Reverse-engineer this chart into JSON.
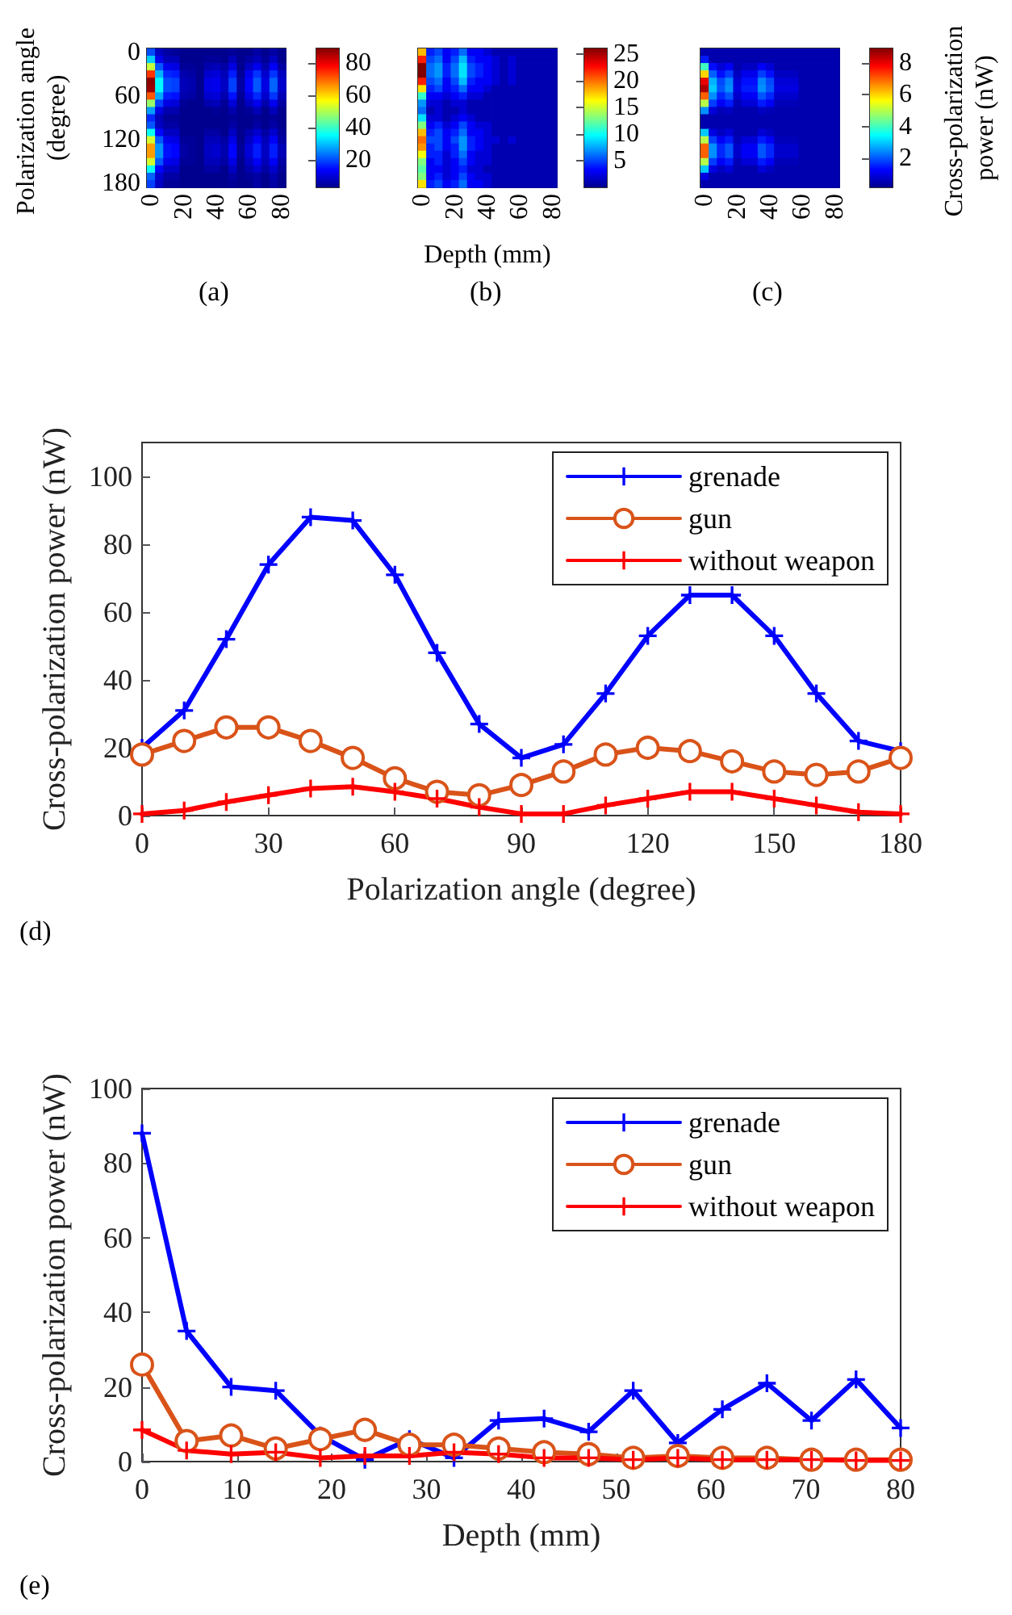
{
  "chart_data": [
    {
      "type": "heatmap",
      "ylabel": "Polarization angle (degree)",
      "annotations": [
        "(a)"
      ],
      "categories": [
        "0",
        null,
        null,
        null,
        "20",
        null,
        null,
        null,
        "40",
        null,
        null,
        null,
        "60",
        null,
        null,
        null,
        "80"
      ],
      "y_categories": [
        "0",
        null,
        null,
        null,
        null,
        null,
        "60",
        null,
        null,
        null,
        null,
        null,
        "120",
        null,
        null,
        null,
        null,
        null,
        "180"
      ],
      "clim": [
        3,
        89
      ],
      "cticks": [
        20,
        40,
        60,
        80
      ],
      "cells": [
        [
          20,
          8,
          5,
          4,
          3,
          3,
          3,
          3,
          3,
          3,
          4,
          3,
          3,
          5,
          3,
          5,
          3
        ],
        [
          31,
          12,
          7,
          7,
          3,
          3,
          3,
          4,
          4,
          3,
          7,
          3,
          5,
          7,
          4,
          8,
          3
        ],
        [
          52,
          21,
          12,
          11,
          4,
          4,
          3,
          6,
          7,
          5,
          11,
          3,
          8,
          12,
          6,
          13,
          5
        ],
        [
          74,
          29,
          17,
          16,
          6,
          5,
          3,
          9,
          10,
          7,
          16,
          4,
          12,
          18,
          9,
          18,
          8
        ],
        [
          88,
          35,
          20,
          19,
          7,
          6,
          3,
          11,
          12,
          8,
          19,
          5,
          14,
          21,
          11,
          22,
          9
        ],
        [
          87,
          35,
          20,
          19,
          7,
          6,
          3,
          11,
          12,
          8,
          19,
          5,
          14,
          21,
          11,
          22,
          9
        ],
        [
          71,
          28,
          16,
          15,
          6,
          5,
          3,
          9,
          10,
          6,
          15,
          4,
          11,
          17,
          9,
          18,
          7
        ],
        [
          48,
          19,
          11,
          10,
          4,
          3,
          3,
          6,
          7,
          4,
          10,
          3,
          8,
          12,
          6,
          12,
          5
        ],
        [
          27,
          11,
          6,
          6,
          3,
          3,
          3,
          3,
          4,
          3,
          6,
          3,
          4,
          7,
          3,
          7,
          3
        ],
        [
          17,
          7,
          4,
          4,
          3,
          3,
          3,
          3,
          3,
          3,
          4,
          3,
          3,
          4,
          3,
          4,
          3
        ],
        [
          21,
          8,
          5,
          5,
          3,
          3,
          3,
          3,
          3,
          3,
          5,
          3,
          3,
          5,
          3,
          5,
          3
        ],
        [
          36,
          14,
          8,
          8,
          3,
          3,
          3,
          5,
          5,
          3,
          8,
          3,
          6,
          9,
          5,
          9,
          4
        ],
        [
          53,
          21,
          12,
          11,
          4,
          4,
          3,
          7,
          7,
          5,
          11,
          3,
          8,
          13,
          7,
          13,
          5
        ],
        [
          65,
          26,
          15,
          14,
          5,
          4,
          3,
          8,
          9,
          6,
          14,
          4,
          10,
          16,
          8,
          16,
          7
        ],
        [
          65,
          26,
          15,
          14,
          5,
          4,
          3,
          8,
          9,
          6,
          14,
          4,
          10,
          16,
          8,
          16,
          7
        ],
        [
          53,
          21,
          12,
          11,
          4,
          4,
          3,
          7,
          7,
          5,
          11,
          3,
          8,
          13,
          7,
          13,
          5
        ],
        [
          36,
          14,
          8,
          8,
          3,
          3,
          3,
          5,
          5,
          3,
          8,
          3,
          6,
          9,
          5,
          9,
          4
        ],
        [
          22,
          9,
          5,
          5,
          3,
          3,
          3,
          3,
          3,
          3,
          5,
          3,
          4,
          5,
          3,
          6,
          3
        ],
        [
          19,
          8,
          4,
          4,
          3,
          3,
          3,
          3,
          3,
          3,
          4,
          3,
          3,
          5,
          3,
          5,
          3
        ]
      ]
    },
    {
      "type": "heatmap",
      "xlabel": "Depth (mm)",
      "annotations": [
        "(b)"
      ],
      "tick_labels": "x",
      "categories": [
        "0",
        null,
        null,
        null,
        "20",
        null,
        null,
        null,
        "40",
        null,
        null,
        null,
        "60",
        null,
        null,
        null,
        "80"
      ],
      "y_categories": [
        null,
        null,
        null,
        null,
        null,
        null,
        null,
        null,
        null,
        null,
        null,
        null,
        null,
        null,
        null,
        null,
        null,
        null,
        null
      ],
      "clim": [
        0,
        26
      ],
      "cticks": [
        5,
        10,
        15,
        20,
        25
      ],
      "cells": [
        [
          18,
          4,
          5,
          3,
          4,
          6,
          3,
          3,
          2,
          1,
          1,
          1,
          1,
          1,
          1,
          1,
          1
        ],
        [
          22,
          5,
          6,
          3,
          5,
          8,
          4,
          3,
          3,
          2,
          1,
          2,
          1,
          1,
          1,
          1,
          1
        ],
        [
          26,
          6,
          7,
          4,
          6,
          9,
          5,
          4,
          3,
          2,
          1,
          2,
          1,
          1,
          1,
          1,
          1
        ],
        [
          26,
          6,
          7,
          4,
          6,
          9,
          5,
          4,
          3,
          2,
          1,
          2,
          1,
          1,
          1,
          1,
          1
        ],
        [
          22,
          5,
          6,
          3,
          5,
          8,
          4,
          3,
          3,
          2,
          1,
          2,
          1,
          1,
          1,
          1,
          1
        ],
        [
          17,
          4,
          5,
          3,
          4,
          6,
          3,
          3,
          2,
          1,
          1,
          1,
          1,
          1,
          1,
          1,
          1
        ],
        [
          11,
          3,
          3,
          2,
          3,
          4,
          2,
          2,
          1,
          1,
          1,
          1,
          1,
          1,
          1,
          1,
          1
        ],
        [
          7,
          2,
          2,
          1,
          2,
          2,
          1,
          1,
          1,
          1,
          1,
          1,
          1,
          1,
          1,
          1,
          1
        ],
        [
          6,
          1,
          2,
          1,
          1,
          2,
          1,
          1,
          1,
          1,
          1,
          1,
          1,
          1,
          1,
          1,
          1
        ],
        [
          9,
          2,
          2,
          1,
          2,
          3,
          2,
          1,
          1,
          1,
          1,
          1,
          1,
          1,
          1,
          1,
          1
        ],
        [
          13,
          3,
          4,
          2,
          3,
          5,
          3,
          2,
          2,
          1,
          1,
          1,
          1,
          1,
          1,
          1,
          1
        ],
        [
          18,
          4,
          5,
          3,
          4,
          6,
          3,
          3,
          2,
          1,
          1,
          1,
          1,
          1,
          1,
          1,
          1
        ],
        [
          20,
          5,
          5,
          3,
          5,
          7,
          4,
          3,
          2,
          2,
          1,
          2,
          1,
          1,
          1,
          1,
          1
        ],
        [
          19,
          4,
          5,
          3,
          4,
          7,
          4,
          3,
          2,
          1,
          1,
          1,
          1,
          1,
          1,
          1,
          1
        ],
        [
          16,
          4,
          4,
          2,
          4,
          6,
          3,
          2,
          2,
          1,
          1,
          1,
          1,
          1,
          1,
          1,
          1
        ],
        [
          13,
          3,
          4,
          2,
          3,
          5,
          3,
          2,
          2,
          1,
          1,
          1,
          1,
          1,
          1,
          1,
          1
        ],
        [
          12,
          3,
          3,
          2,
          3,
          4,
          2,
          2,
          1,
          1,
          1,
          1,
          1,
          1,
          1,
          1,
          1
        ],
        [
          13,
          3,
          4,
          2,
          3,
          5,
          3,
          2,
          2,
          1,
          1,
          1,
          1,
          1,
          1,
          1,
          1
        ],
        [
          17,
          4,
          5,
          3,
          4,
          6,
          3,
          3,
          2,
          1,
          1,
          1,
          1,
          1,
          1,
          1,
          1
        ]
      ]
    },
    {
      "type": "heatmap",
      "clabel": "Cross-polarization power (nW)",
      "annotations": [
        "(c)"
      ],
      "tick_labels": "x",
      "categories": [
        "0",
        null,
        null,
        null,
        "20",
        null,
        null,
        null,
        "40",
        null,
        null,
        null,
        "60",
        null,
        null,
        null,
        "80"
      ],
      "y_categories": [
        null,
        null,
        null,
        null,
        null,
        null,
        null,
        null,
        null,
        null,
        null,
        null,
        null,
        null,
        null,
        null,
        null,
        null,
        null
      ],
      "clim": [
        0.2,
        8.9
      ],
      "cticks": [
        2,
        4,
        6,
        8
      ],
      "cells": [
        [
          0.5,
          0.5,
          0.5,
          0.5,
          0.5,
          0.5,
          0.5,
          0.5,
          0.5,
          0.5,
          0.5,
          0.5,
          0.5,
          0.5,
          0.5,
          0.5,
          0.5
        ],
        [
          1.5,
          0.5,
          0.5,
          0.5,
          0.5,
          0.5,
          0.5,
          0.5,
          0.5,
          0.5,
          0.5,
          0.5,
          0.5,
          0.5,
          0.5,
          0.5,
          0.5
        ],
        [
          4,
          1.4,
          0.9,
          1.2,
          0.5,
          0.7,
          0.7,
          1.2,
          0.9,
          0.5,
          0.5,
          0.5,
          0.5,
          0.5,
          0.5,
          0.5,
          0.5
        ],
        [
          6,
          2.1,
          1.4,
          1.8,
          0.7,
          1.1,
          1.1,
          1.8,
          1.4,
          0.7,
          0.7,
          0.7,
          0.5,
          0.5,
          0.5,
          0.5,
          0.5
        ],
        [
          8,
          2.8,
          1.9,
          2.4,
          0.9,
          1.4,
          1.4,
          2.4,
          1.9,
          0.9,
          0.9,
          0.9,
          0.5,
          0.5,
          0.5,
          0.5,
          0.5
        ],
        [
          8.5,
          3,
          2,
          2.5,
          1,
          1.5,
          1.5,
          2.5,
          2,
          1,
          1,
          1,
          0.5,
          0.5,
          0.5,
          0.5,
          0.5
        ],
        [
          7,
          2.5,
          1.6,
          2,
          0.8,
          1.2,
          1.2,
          2,
          1.6,
          0.8,
          0.8,
          0.8,
          0.5,
          0.5,
          0.5,
          0.5,
          0.5
        ],
        [
          5,
          1.8,
          1.2,
          1.5,
          0.6,
          0.9,
          0.9,
          1.5,
          1.2,
          0.6,
          0.6,
          0.6,
          0.5,
          0.5,
          0.5,
          0.5,
          0.5
        ],
        [
          2.5,
          0.9,
          0.6,
          0.7,
          0.5,
          0.5,
          0.5,
          0.7,
          0.6,
          0.5,
          0.5,
          0.5,
          0.5,
          0.5,
          0.5,
          0.5,
          0.5
        ],
        [
          0.5,
          0.5,
          0.5,
          0.5,
          0.5,
          0.5,
          0.5,
          0.5,
          0.5,
          0.5,
          0.5,
          0.5,
          0.5,
          0.5,
          0.5,
          0.5,
          0.5
        ],
        [
          0.5,
          0.5,
          0.5,
          0.5,
          0.5,
          0.5,
          0.5,
          0.5,
          0.5,
          0.5,
          0.5,
          0.5,
          0.5,
          0.5,
          0.5,
          0.5,
          0.5
        ],
        [
          3,
          1,
          0.7,
          0.9,
          0.5,
          0.5,
          0.5,
          0.9,
          0.7,
          0.5,
          0.5,
          0.5,
          0.5,
          0.5,
          0.5,
          0.5,
          0.5
        ],
        [
          5,
          1.8,
          1.2,
          1.5,
          0.6,
          0.9,
          0.9,
          1.5,
          1.2,
          0.6,
          0.6,
          0.6,
          0.5,
          0.5,
          0.5,
          0.5,
          0.5
        ],
        [
          7,
          2.5,
          1.6,
          2,
          0.8,
          1.2,
          1.2,
          2,
          1.6,
          0.8,
          0.8,
          0.8,
          0.5,
          0.5,
          0.5,
          0.5,
          0.5
        ],
        [
          7,
          2.5,
          1.6,
          2,
          0.8,
          1.2,
          1.2,
          2,
          1.6,
          0.8,
          0.8,
          0.8,
          0.5,
          0.5,
          0.5,
          0.5,
          0.5
        ],
        [
          5,
          1.8,
          1.2,
          1.5,
          0.6,
          0.9,
          0.9,
          1.5,
          1.2,
          0.6,
          0.6,
          0.6,
          0.5,
          0.5,
          0.5,
          0.5,
          0.5
        ],
        [
          3,
          1,
          0.7,
          0.9,
          0.5,
          0.5,
          0.5,
          0.9,
          0.7,
          0.5,
          0.5,
          0.5,
          0.5,
          0.5,
          0.5,
          0.5,
          0.5
        ],
        [
          1,
          0.5,
          0.5,
          0.5,
          0.5,
          0.5,
          0.5,
          0.5,
          0.5,
          0.5,
          0.5,
          0.5,
          0.5,
          0.5,
          0.5,
          0.5,
          0.5
        ],
        [
          0.5,
          0.5,
          0.5,
          0.5,
          0.5,
          0.5,
          0.5,
          0.5,
          0.5,
          0.5,
          0.5,
          0.5,
          0.5,
          0.5,
          0.5,
          0.5,
          0.5
        ]
      ]
    },
    {
      "type": "line",
      "xlabel": "Polarization angle (degree)",
      "ylabel": "Cross-polarization power (nW)",
      "annotations": [
        "(d)"
      ],
      "x": [
        0,
        10,
        20,
        30,
        40,
        50,
        60,
        70,
        80,
        90,
        100,
        110,
        120,
        130,
        140,
        150,
        160,
        170,
        180
      ],
      "xlim": [
        0,
        180
      ],
      "xticks": [
        0,
        30,
        60,
        90,
        120,
        150,
        180
      ],
      "ylim": [
        0,
        110
      ],
      "yticks": [
        0,
        20,
        40,
        60,
        80,
        100
      ],
      "legend": "top right",
      "grid": false,
      "line_style": "solid",
      "series": [
        {
          "name": "grenade",
          "color": "#0000ff",
          "marker": "cross",
          "values": [
            20,
            31,
            52,
            74,
            88,
            87,
            71,
            48,
            27,
            17,
            21,
            36,
            53,
            65,
            65,
            53,
            36,
            22,
            19
          ]
        },
        {
          "name": "gun",
          "color": "#d95319",
          "marker": "circle",
          "values": [
            18,
            22,
            26,
            26,
            22,
            17,
            11,
            7,
            6,
            9,
            13,
            18,
            20,
            19,
            16,
            13,
            12,
            13,
            17
          ]
        },
        {
          "name": "without weapon",
          "color": "#ff0000",
          "marker": "cross",
          "values": [
            0.5,
            1.5,
            4,
            6,
            8,
            8.5,
            7,
            5,
            2.5,
            0.5,
            0.5,
            3,
            5,
            7,
            7,
            5,
            3,
            1,
            0.5
          ]
        }
      ]
    },
    {
      "type": "line",
      "xlabel": "Depth (mm)",
      "ylabel": "Cross-polarization power (nW)",
      "annotations": [
        "(e)"
      ],
      "x": [
        0,
        4.7,
        9.4,
        14.1,
        18.8,
        23.5,
        28.2,
        32.9,
        37.6,
        42.4,
        47.1,
        51.8,
        56.5,
        61.2,
        65.9,
        70.6,
        75.3,
        80
      ],
      "xlim": [
        0,
        80
      ],
      "xticks": [
        0,
        10,
        20,
        30,
        40,
        50,
        60,
        70,
        80
      ],
      "ylim": [
        0,
        100
      ],
      "yticks": [
        0,
        20,
        40,
        60,
        80,
        100
      ],
      "legend": "top right",
      "grid": false,
      "line_style": "solid",
      "series": [
        {
          "name": "grenade",
          "color": "#0000ff",
          "marker": "cross",
          "values": [
            88,
            35,
            20,
            19,
            7,
            0.5,
            6,
            1,
            11,
            11.5,
            8,
            19,
            5,
            14,
            21,
            11,
            22,
            9
          ]
        },
        {
          "name": "gun",
          "color": "#d95319",
          "marker": "circle",
          "values": [
            26,
            5.5,
            7,
            3.5,
            6,
            8.5,
            4.5,
            4.5,
            3.5,
            2.5,
            2,
            1,
            1.5,
            1,
            1,
            0.5,
            0.5,
            0.5
          ]
        },
        {
          "name": "without weapon",
          "color": "#ff0000",
          "marker": "cross",
          "values": [
            8.5,
            3,
            2,
            2.5,
            1,
            1.5,
            1.5,
            2.5,
            2,
            1,
            1,
            0.5,
            1,
            0.5,
            0.5,
            0.5,
            0.3,
            0.3
          ]
        }
      ]
    }
  ]
}
